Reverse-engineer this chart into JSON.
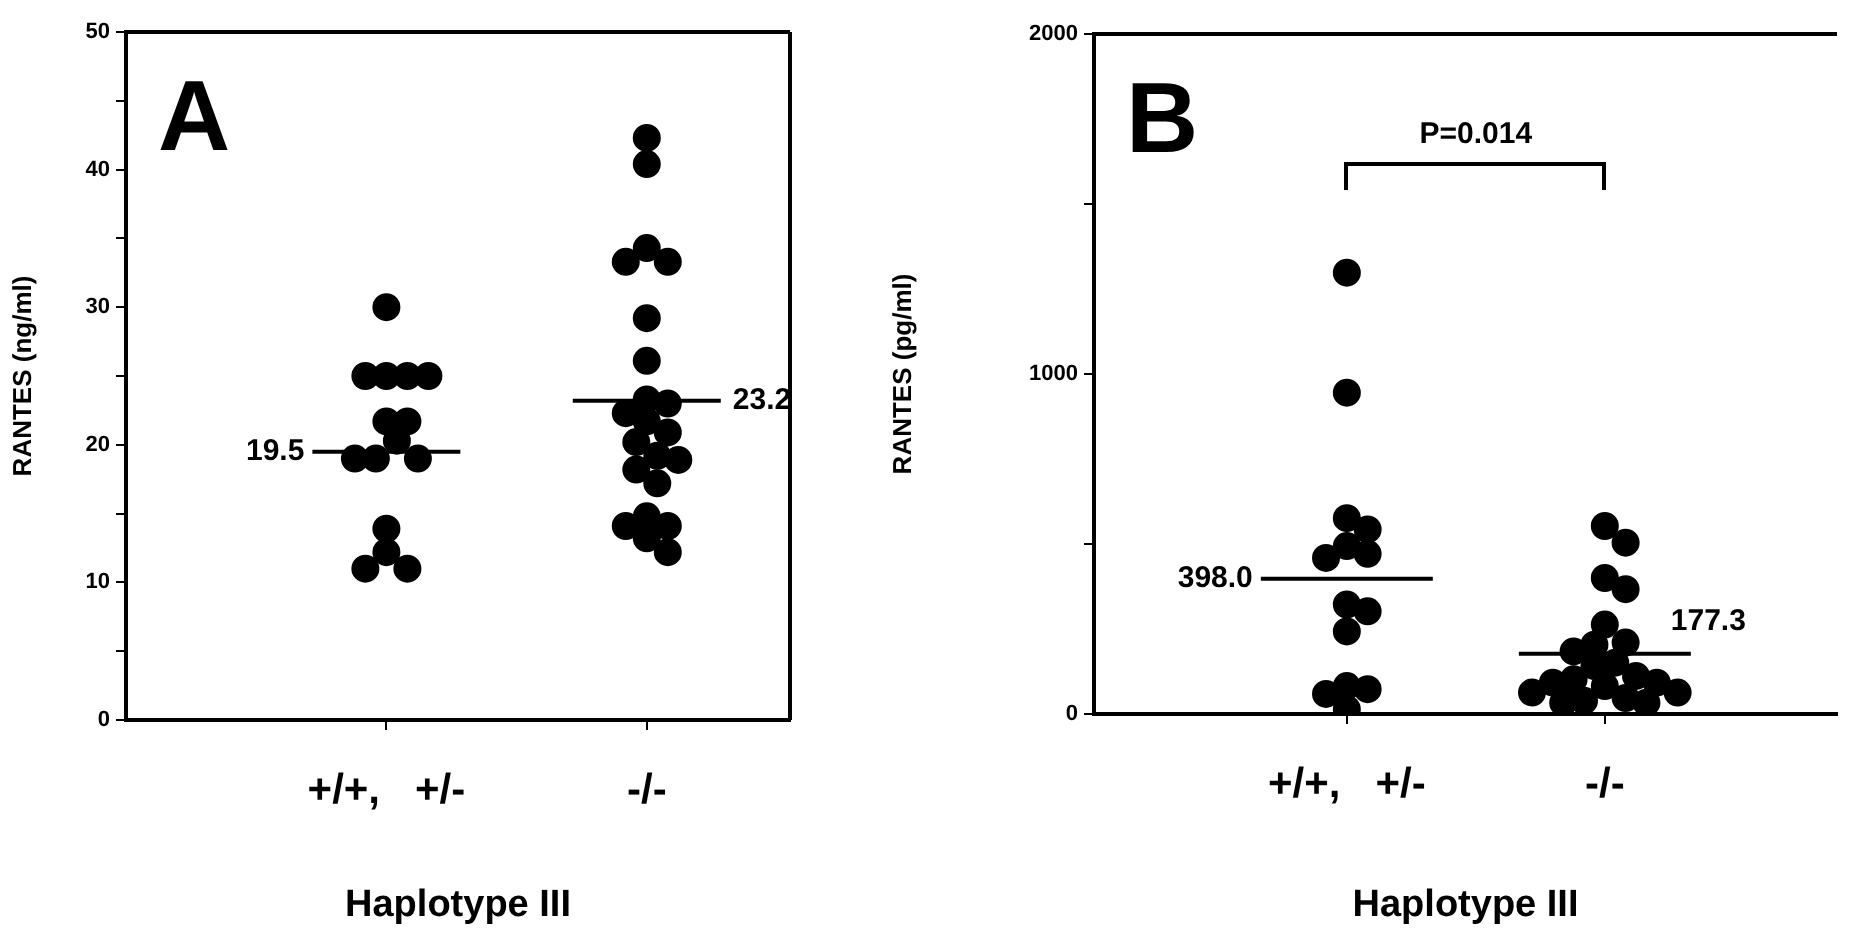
{
  "chart_data": [
    {
      "type": "scatter",
      "title": "A",
      "xlabel": "Haplotype III",
      "ylabel": "RANTES (ng/ml)",
      "grid": false,
      "legend": false,
      "categories": [
        "+/+,   +/-",
        "-/-"
      ],
      "ylim": [
        0,
        50
      ],
      "yticks": [
        0,
        {
          "value": 5,
          "label": null
        },
        10,
        {
          "value": 15,
          "label": null
        },
        20,
        {
          "value": 25,
          "label": null
        },
        30,
        {
          "value": 35,
          "label": null
        },
        40,
        {
          "value": 45,
          "label": null
        },
        50
      ],
      "series": [
        {
          "color": "#000000",
          "marker": "circle",
          "x": [
            "+/+,   +/-",
            "+/+,   +/-",
            "+/+,   +/-",
            "+/+,   +/-",
            "+/+,   +/-",
            "+/+,   +/-",
            "+/+,   +/-",
            "+/+,   +/-",
            "+/+,   +/-",
            "+/+,   +/-",
            "+/+,   +/-",
            "+/+,   +/-",
            "+/+,   +/-",
            "+/+,   +/-",
            "+/+,   +/-",
            "-/-",
            "-/-",
            "-/-",
            "-/-",
            "-/-",
            "-/-",
            "-/-",
            "-/-",
            "-/-",
            "-/-",
            "-/-",
            "-/-",
            "-/-",
            "-/-",
            "-/-",
            "-/-",
            "-/-",
            "-/-",
            "-/-",
            "-/-",
            "-/-",
            "-/-"
          ],
          "values": [
            30,
            25,
            25,
            25,
            25,
            21.7,
            21.7,
            20.3,
            19,
            19,
            19,
            13.9,
            12.2,
            11,
            11,
            42.3,
            40.4,
            34.3,
            33.3,
            33.3,
            29.2,
            26.1,
            23,
            23.3,
            21.7,
            22.3,
            20.9,
            20.2,
            19.2,
            18.9,
            18.2,
            17.2,
            14.1,
            14.1,
            14.8,
            13.2,
            12.2
          ]
        }
      ],
      "ref_lines": [
        {
          "axis": "y",
          "value": 19.5,
          "label": "19.5"
        },
        {
          "axis": "y",
          "value": 23.2,
          "label": "23.2"
        }
      ]
    },
    {
      "type": "scatter",
      "title": "B",
      "xlabel": "Haplotype III",
      "ylabel": "RANTES (pg/ml)",
      "grid": false,
      "legend": false,
      "categories": [
        "+/+,   +/-",
        "-/-"
      ],
      "ylim": [
        0,
        2000
      ],
      "yticks": [
        0,
        {
          "value": 500,
          "label": null
        },
        1000,
        {
          "value": 1500,
          "label": null
        },
        2000
      ],
      "series": [
        {
          "color": "#000000",
          "marker": "circle",
          "x": [
            "+/+,   +/-",
            "+/+,   +/-",
            "+/+,   +/-",
            "+/+,   +/-",
            "+/+,   +/-",
            "+/+,   +/-",
            "+/+,   +/-",
            "+/+,   +/-",
            "+/+,   +/-",
            "+/+,   +/-",
            "+/+,   +/-",
            "+/+,   +/-",
            "+/+,   +/-",
            "+/+,   +/-",
            "-/-",
            "-/-",
            "-/-",
            "-/-",
            "-/-",
            "-/-",
            "-/-",
            "-/-",
            "-/-",
            "-/-",
            "-/-",
            "-/-",
            "-/-",
            "-/-",
            "-/-",
            "-/-",
            "-/-",
            "-/-",
            "-/-",
            "-/-",
            "-/-"
          ],
          "values": [
            1298,
            945,
            576,
            543,
            459,
            494,
            471,
            322,
            302,
            243,
            82,
            59,
            73,
            14,
            553,
            504,
            400,
            367,
            263,
            204,
            210,
            184,
            151,
            92,
            102,
            112,
            82,
            141,
            92,
            63,
            47,
            33,
            63,
            39,
            33
          ]
        }
      ],
      "ref_lines": [
        {
          "axis": "y",
          "value": 398,
          "label": "398.0"
        },
        {
          "axis": "y",
          "value": 177.3,
          "label": "177.3"
        }
      ],
      "annotations": [
        "P=0.014"
      ]
    }
  ]
}
